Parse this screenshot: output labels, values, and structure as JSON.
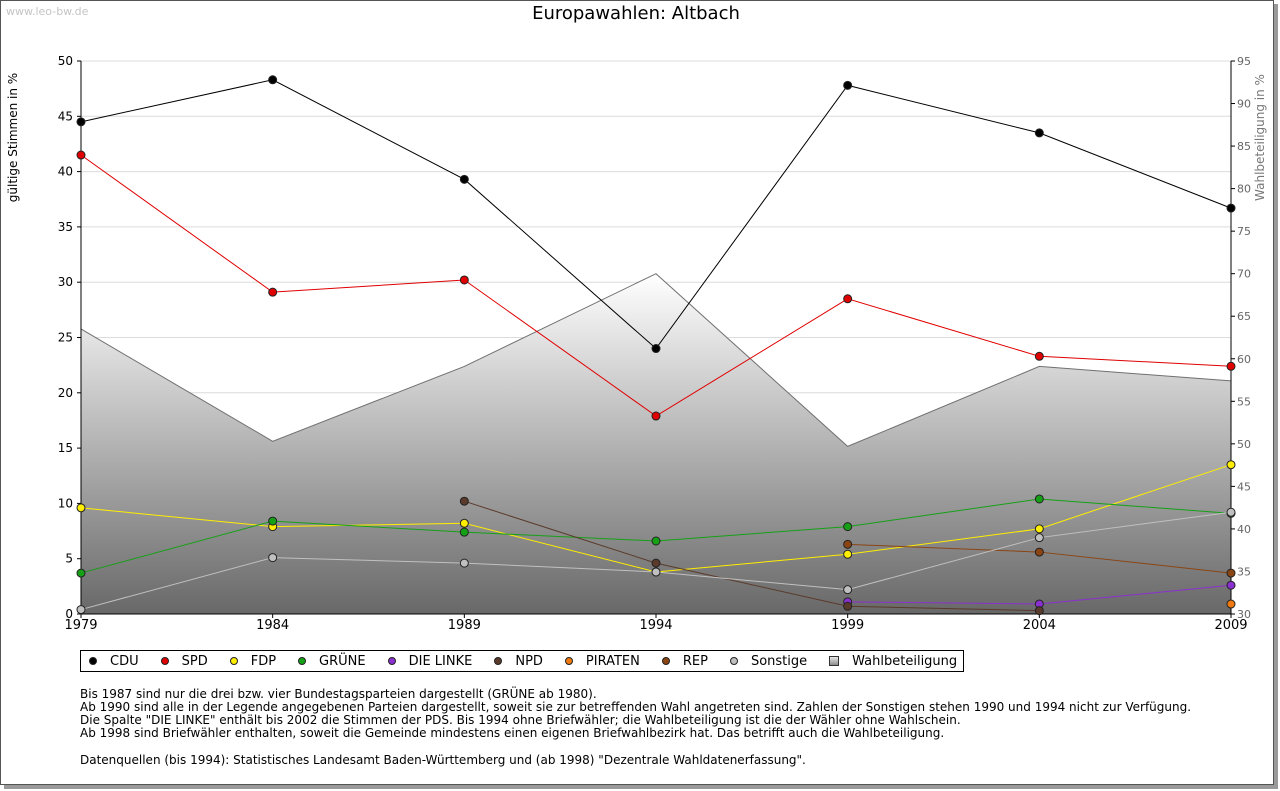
{
  "watermark": "www.leo-bw.de",
  "notes": [
    "Bis 1987 sind nur die drei bzw. vier Bundestagsparteien dargestellt (GRÜNE ab 1980).",
    "Ab 1990 sind alle in der Legende angegebenen Parteien dargestellt, soweit sie zur betreffenden Wahl angetreten sind. Zahlen der Sonstigen stehen 1990 und 1994 nicht zur Verfügung.",
    "Die Spalte \"DIE LINKE\" enthält bis 2002 die Stimmen der PDS. Bis 1994 ohne Briefwähler; die Wahlbeteiligung ist die der Wähler ohne Wahlschein.",
    "Ab 1998 sind Briefwähler enthalten, soweit die Gemeinde mindestens einen eigenen Briefwahlbezirk hat. Das betrifft auch die Wahlbeteiligung."
  ],
  "sources": "Datenquellen (bis 1994): Statistisches Landesamt Baden-Württemberg und (ab 1998) \"Dezentrale Wahldatenerfassung\".",
  "chart_data": {
    "type": "line",
    "title": "Europawahlen: Altbach",
    "ylabel": "gültige Stimmen in %",
    "y2label": "Wahlbeteiligung in %",
    "x": [
      1979,
      1984,
      1989,
      1994,
      1999,
      2004,
      2009
    ],
    "ylim": [
      0,
      50
    ],
    "yticks": [
      0,
      5,
      10,
      15,
      20,
      25,
      30,
      35,
      40,
      45,
      50
    ],
    "y2lim": [
      30,
      95
    ],
    "y2ticks": [
      30,
      35,
      40,
      45,
      50,
      55,
      60,
      65,
      70,
      75,
      80,
      85,
      90,
      95
    ],
    "grid": true,
    "legend_position": "bottom",
    "turnout": {
      "name": "Wahlbeteiligung",
      "axis": "right",
      "values": [
        63.5,
        50.3,
        59.1,
        70.0,
        49.7,
        59.1,
        57.4
      ]
    },
    "series": [
      {
        "name": "CDU",
        "color": "#000000",
        "values": [
          44.5,
          48.3,
          39.3,
          24.0,
          47.8,
          43.5,
          36.7
        ]
      },
      {
        "name": "SPD",
        "color": "#e00000",
        "values": [
          41.5,
          29.1,
          30.2,
          17.9,
          28.5,
          23.3,
          22.4
        ]
      },
      {
        "name": "FDP",
        "color": "#ffee00",
        "values": [
          9.6,
          7.9,
          8.2,
          3.8,
          5.4,
          7.7,
          13.5
        ]
      },
      {
        "name": "GRÜNE",
        "color": "#16a016",
        "values": [
          3.7,
          8.4,
          7.4,
          6.6,
          7.9,
          10.4,
          9.1
        ]
      },
      {
        "name": "DIE LINKE",
        "color": "#8b30d0",
        "values": [
          null,
          null,
          null,
          null,
          1.1,
          0.9,
          2.6
        ]
      },
      {
        "name": "NPD",
        "color": "#5a3a2a",
        "values": [
          null,
          null,
          10.2,
          4.6,
          0.7,
          0.3,
          null
        ]
      },
      {
        "name": "PIRATEN",
        "color": "#f07a10",
        "values": [
          null,
          null,
          null,
          null,
          null,
          null,
          0.9
        ]
      },
      {
        "name": "REP",
        "color": "#8b4513",
        "values": [
          null,
          null,
          null,
          null,
          6.3,
          5.6,
          3.7
        ]
      },
      {
        "name": "Sonstige",
        "color": "#c0c0c0",
        "values": [
          0.4,
          5.1,
          4.6,
          3.8,
          2.2,
          6.9,
          9.2
        ]
      }
    ],
    "legend": [
      {
        "name": "CDU",
        "color": "#000000",
        "marker": "diamond"
      },
      {
        "name": "SPD",
        "color": "#e00000",
        "marker": "diamond"
      },
      {
        "name": "FDP",
        "color": "#ffee00",
        "marker": "diamond"
      },
      {
        "name": "GRÜNE",
        "color": "#16a016",
        "marker": "diamond"
      },
      {
        "name": "DIE LINKE",
        "color": "#8b30d0",
        "marker": "diamond"
      },
      {
        "name": "NPD",
        "color": "#5a3a2a",
        "marker": "diamond"
      },
      {
        "name": "PIRATEN",
        "color": "#f07a10",
        "marker": "diamond"
      },
      {
        "name": "REP",
        "color": "#8b4513",
        "marker": "diamond"
      },
      {
        "name": "Sonstige",
        "color": "#c0c0c0",
        "marker": "diamond"
      },
      {
        "name": "Wahlbeteiligung",
        "color": "#9a9a9a",
        "marker": "square"
      }
    ]
  }
}
